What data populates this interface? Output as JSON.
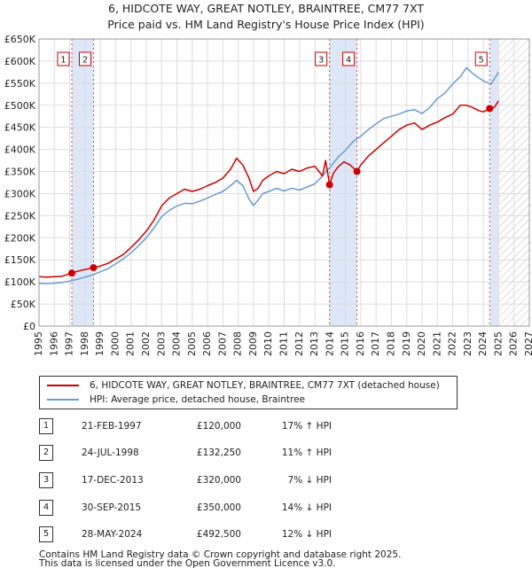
{
  "title": {
    "line1": "6, HIDCOTE WAY, GREAT NOTLEY, BRAINTREE, CM77 7XT",
    "line2": "Price paid vs. HM Land Registry's House Price Index (HPI)"
  },
  "colors": {
    "property": "#cc0000",
    "hpi": "#6a9bd1",
    "band": "#dde7f7",
    "marker": "#cc0000"
  },
  "legend": {
    "property": "6, HIDCOTE WAY, GREAT NOTLEY, BRAINTREE, CM77 7XT (detached house)",
    "hpi": "HPI: Average price, detached house, Braintree"
  },
  "sales": [
    {
      "num": "1",
      "date": "21-FEB-1997",
      "price": "£120,000",
      "hpi": "17% ↑ HPI"
    },
    {
      "num": "2",
      "date": "24-JUL-1998",
      "price": "£132,250",
      "hpi": "11% ↑ HPI"
    },
    {
      "num": "3",
      "date": "17-DEC-2013",
      "price": "£320,000",
      "hpi": "7% ↓ HPI"
    },
    {
      "num": "4",
      "date": "30-SEP-2015",
      "price": "£350,000",
      "hpi": "14% ↓ HPI"
    },
    {
      "num": "5",
      "date": "28-MAY-2024",
      "price": "£492,500",
      "hpi": "12% ↓ HPI"
    }
  ],
  "footer": {
    "line1": "Contains HM Land Registry data © Crown copyright and database right 2025.",
    "line2": "This data is licensed under the Open Government Licence v3.0."
  },
  "chart_data": {
    "type": "line",
    "title": "6, HIDCOTE WAY, GREAT NOTLEY, BRAINTREE, CM77 7XT — Price paid vs. HM Land Registry's House Price Index (HPI)",
    "xlabel": "",
    "ylabel": "",
    "xlim": [
      1995,
      2027
    ],
    "ylim": [
      0,
      650000
    ],
    "yticks": [
      0,
      50000,
      100000,
      150000,
      200000,
      250000,
      300000,
      350000,
      400000,
      450000,
      500000,
      550000,
      600000,
      650000
    ],
    "ytick_labels": [
      "£0",
      "£50K",
      "£100K",
      "£150K",
      "£200K",
      "£250K",
      "£300K",
      "£350K",
      "£400K",
      "£450K",
      "£500K",
      "£550K",
      "£600K",
      "£650K"
    ],
    "xticks": [
      1995,
      1996,
      1997,
      1998,
      1999,
      2000,
      2001,
      2002,
      2003,
      2004,
      2005,
      2006,
      2007,
      2008,
      2009,
      2010,
      2011,
      2012,
      2013,
      2014,
      2015,
      2016,
      2017,
      2018,
      2019,
      2020,
      2021,
      2022,
      2023,
      2024,
      2025,
      2026,
      2027
    ],
    "grid": true,
    "future_hatch_from": 2025.0,
    "shaded_bands": [
      [
        1997.14,
        1998.56
      ],
      [
        2013.96,
        2015.75
      ],
      [
        2024.41,
        2025.0
      ]
    ],
    "series": [
      {
        "name": "6, HIDCOTE WAY, GREAT NOTLEY, BRAINTREE, CM77 7XT (detached house)",
        "x": [
          1995.0,
          1995.5,
          1996.0,
          1996.5,
          1997.14,
          1997.6,
          1998.0,
          1998.56,
          1999.0,
          1999.5,
          2000.0,
          2000.5,
          2001.0,
          2001.5,
          2002.0,
          2002.5,
          2003.0,
          2003.5,
          2004.0,
          2004.5,
          2005.0,
          2005.5,
          2006.0,
          2006.5,
          2007.0,
          2007.5,
          2007.9,
          2008.3,
          2008.7,
          2009.0,
          2009.3,
          2009.6,
          2010.0,
          2010.5,
          2011.0,
          2011.5,
          2012.0,
          2012.5,
          2013.0,
          2013.5,
          2013.7,
          2013.96,
          2014.2,
          2014.5,
          2014.9,
          2015.3,
          2015.75,
          2016.0,
          2016.5,
          2017.0,
          2017.5,
          2018.0,
          2018.5,
          2019.0,
          2019.5,
          2020.0,
          2020.5,
          2021.0,
          2021.5,
          2022.0,
          2022.5,
          2022.9,
          2023.3,
          2023.7,
          2024.0,
          2024.41,
          2024.7,
          2025.0
        ],
        "y": [
          112000,
          111000,
          112000,
          113000,
          120000,
          125000,
          128000,
          132250,
          136000,
          142000,
          152000,
          162000,
          178000,
          195000,
          215000,
          240000,
          272000,
          290000,
          300000,
          310000,
          305000,
          310000,
          318000,
          325000,
          335000,
          355000,
          380000,
          365000,
          335000,
          305000,
          312000,
          330000,
          340000,
          350000,
          345000,
          355000,
          350000,
          358000,
          362000,
          340000,
          375000,
          320000,
          345000,
          360000,
          372000,
          365000,
          350000,
          365000,
          385000,
          400000,
          415000,
          430000,
          445000,
          455000,
          460000,
          445000,
          455000,
          462000,
          472000,
          480000,
          500000,
          500000,
          495000,
          488000,
          485000,
          492500,
          495000,
          510000
        ]
      },
      {
        "name": "HPI: Average price, detached house, Braintree",
        "x": [
          1995.0,
          1995.5,
          1996.0,
          1996.5,
          1997.0,
          1997.5,
          1998.0,
          1998.5,
          1999.0,
          1999.5,
          2000.0,
          2000.5,
          2001.0,
          2001.5,
          2002.0,
          2002.5,
          2003.0,
          2003.5,
          2004.0,
          2004.5,
          2005.0,
          2005.5,
          2006.0,
          2006.5,
          2007.0,
          2007.5,
          2007.9,
          2008.3,
          2008.7,
          2009.0,
          2009.3,
          2009.6,
          2010.0,
          2010.5,
          2011.0,
          2011.5,
          2012.0,
          2012.5,
          2013.0,
          2013.5,
          2014.0,
          2014.5,
          2015.0,
          2015.5,
          2016.0,
          2016.5,
          2017.0,
          2017.5,
          2018.0,
          2018.5,
          2019.0,
          2019.5,
          2020.0,
          2020.5,
          2021.0,
          2021.5,
          2022.0,
          2022.5,
          2022.9,
          2023.3,
          2023.7,
          2024.0,
          2024.5,
          2025.0
        ],
        "y": [
          97000,
          96000,
          97000,
          99000,
          102000,
          106000,
          111000,
          116000,
          123000,
          130000,
          141000,
          152000,
          166000,
          182000,
          200000,
          222000,
          248000,
          262000,
          272000,
          278000,
          277000,
          283000,
          290000,
          298000,
          305000,
          318000,
          330000,
          318000,
          288000,
          273000,
          285000,
          300000,
          305000,
          312000,
          306000,
          312000,
          308000,
          315000,
          322000,
          340000,
          360000,
          382000,
          398000,
          418000,
          430000,
          445000,
          458000,
          470000,
          475000,
          480000,
          487000,
          490000,
          481000,
          495000,
          515000,
          528000,
          548000,
          565000,
          585000,
          572000,
          562000,
          555000,
          548000,
          575000
        ]
      }
    ],
    "sales_points": [
      {
        "label": "1",
        "x": 1997.14,
        "y": 120000
      },
      {
        "label": "2",
        "x": 1998.56,
        "y": 132250
      },
      {
        "label": "3",
        "x": 2013.96,
        "y": 320000
      },
      {
        "label": "4",
        "x": 2015.75,
        "y": 350000
      },
      {
        "label": "5",
        "x": 2024.41,
        "y": 492500
      }
    ]
  }
}
